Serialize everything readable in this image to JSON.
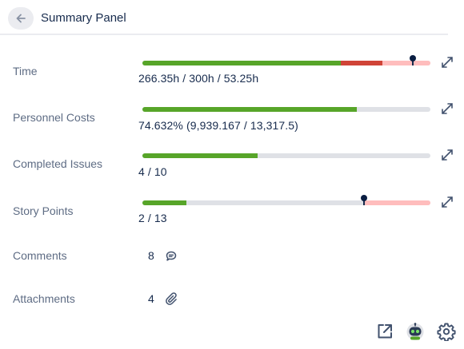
{
  "header": {
    "title": "Summary Panel",
    "back_icon": "arrow-left-icon"
  },
  "colors": {
    "green": "#57a529",
    "red": "#d04437",
    "pink": "#ffbdbd",
    "track": "#dfe1e6"
  },
  "rows": {
    "time": {
      "label": "Time",
      "value": "266.35h / 300h / 53.25h",
      "progress": {
        "green": 0.69,
        "red": 0.14,
        "pink": 0.17,
        "marker": 0.94
      }
    },
    "personnel": {
      "label": "Personnel Costs",
      "value": "74.632% (9,939.167 / 13,317.5)",
      "progress": {
        "green": 0.746
      }
    },
    "issues": {
      "label": "Completed Issues",
      "value": "4 / 10",
      "progress": {
        "green": 0.4
      }
    },
    "story": {
      "label": "Story Points",
      "value": "2 / 13",
      "progress": {
        "green": 0.154,
        "pink_from": 0.77,
        "marker": 0.77
      }
    },
    "comments": {
      "label": "Comments",
      "count": "8",
      "icon": "comment-icon"
    },
    "attachments": {
      "label": "Attachments",
      "count": "4",
      "icon": "paperclip-icon"
    }
  },
  "footer": {
    "icons": [
      "open-external-icon",
      "robot-avatar-icon",
      "gear-icon"
    ]
  }
}
